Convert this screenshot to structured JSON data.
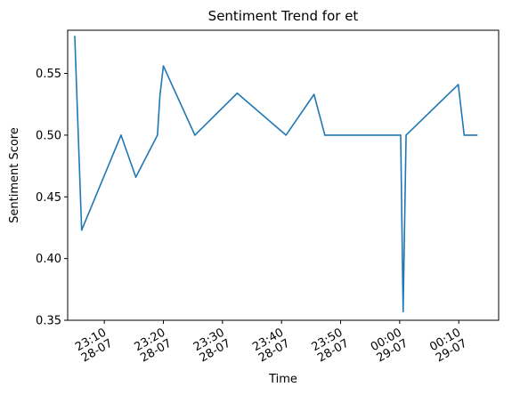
{
  "chart_data": {
    "type": "line",
    "title": "Sentiment Trend for et",
    "xlabel": "Time",
    "ylabel": "Sentiment Score",
    "ylim": [
      0.35,
      0.585
    ],
    "xlim": [
      "2024-07-28T23:03:48",
      "2024-07-29T00:16:45"
    ],
    "grid": false,
    "color": "#1f77b4",
    "y_ticks": [
      "0.35",
      "0.40",
      "0.45",
      "0.50",
      "0.55"
    ],
    "x_ticks": [
      {
        "time": "2024-07-28T23:10",
        "line1": "23:10",
        "line2": "28-07"
      },
      {
        "time": "2024-07-28T23:20",
        "line1": "23:20",
        "line2": "28-07"
      },
      {
        "time": "2024-07-28T23:30",
        "line1": "23:30",
        "line2": "28-07"
      },
      {
        "time": "2024-07-28T23:40",
        "line1": "23:40",
        "line2": "28-07"
      },
      {
        "time": "2024-07-28T23:50",
        "line1": "23:50",
        "line2": "28-07"
      },
      {
        "time": "2024-07-29T00:00",
        "line1": "00:00",
        "line2": "29-07"
      },
      {
        "time": "2024-07-29T00:10",
        "line1": "00:10",
        "line2": "29-07"
      }
    ],
    "series": [
      {
        "x": [
          "2024-07-28T23:05:00",
          "2024-07-28T23:06:10",
          "2024-07-28T23:12:50",
          "2024-07-28T23:15:20",
          "2024-07-28T23:19:00",
          "2024-07-28T23:19:25",
          "2024-07-28T23:20:00",
          "2024-07-28T23:25:20",
          "2024-07-28T23:32:30",
          "2024-07-28T23:40:45",
          "2024-07-28T23:45:30",
          "2024-07-28T23:47:20",
          "2024-07-29T00:00:10",
          "2024-07-29T00:00:35",
          "2024-07-29T00:01:05",
          "2024-07-29T00:09:55",
          "2024-07-29T00:10:55",
          "2024-07-29T00:13:05"
        ],
        "y": [
          0.58,
          0.423,
          0.5,
          0.466,
          0.5,
          0.532,
          0.556,
          0.5,
          0.534,
          0.5,
          0.533,
          0.5,
          0.5,
          0.357,
          0.5,
          0.541,
          0.5,
          0.5
        ]
      }
    ]
  }
}
